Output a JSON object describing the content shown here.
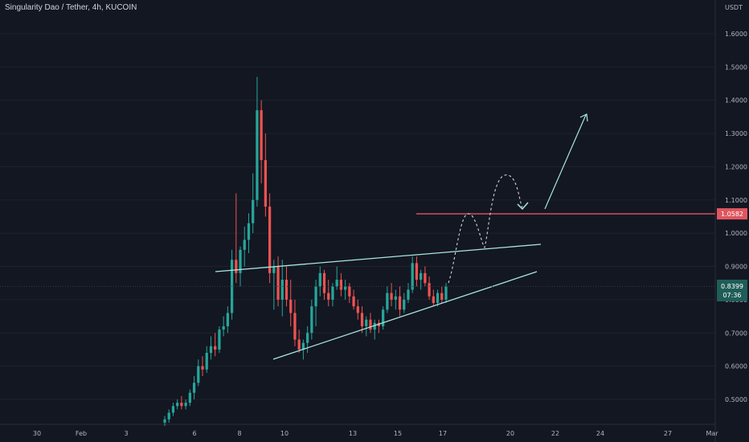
{
  "header": {
    "symbol_title": "Singularity Dao / Tether, 4h, KUCOIN"
  },
  "chart_data": {
    "type": "candlestick",
    "title": "Singularity Dao / Tether, 4h, KUCOIN",
    "y_unit": "USDT",
    "ylim": [
      0.42,
      1.72
    ],
    "y_ticks": [
      "1.6000",
      "1.5000",
      "1.4000",
      "1.3000",
      "1.2000",
      "1.1000",
      "1.0000",
      "0.9000",
      "0.8000",
      "0.7000",
      "0.6000",
      "0.5000"
    ],
    "x_ticks": [
      "30",
      "Feb",
      "3",
      "6",
      "8",
      "10",
      "13",
      "15",
      "17",
      "20",
      "22",
      "24",
      "27",
      "Mar"
    ],
    "price_labels": {
      "resistance": "1.0582",
      "last": "0.8399",
      "countdown": "07:36",
      "hidden_prev_fragment": "0.8000"
    },
    "colors": {
      "background": "#131722",
      "up": "#26a69a",
      "down": "#ef5350",
      "trendline": "#a8e6e0",
      "resistance_line": "#e05660",
      "axis_text": "#b2b5be",
      "grid": "#1e222d"
    },
    "annotations": [
      {
        "type": "horizontal_line",
        "name": "resistance",
        "value": 1.0582
      },
      {
        "type": "trendline",
        "name": "upper",
        "from": [
          "Feb 7",
          0.88
        ],
        "to": [
          "Feb 21",
          0.963
        ]
      },
      {
        "type": "trendline",
        "name": "lower",
        "from": [
          "Feb 9",
          0.62
        ],
        "to": [
          "Feb 21",
          0.88
        ]
      },
      {
        "type": "dashed_projection",
        "description": "bounce path"
      },
      {
        "type": "arrow",
        "to_value": 1.35
      }
    ]
  }
}
